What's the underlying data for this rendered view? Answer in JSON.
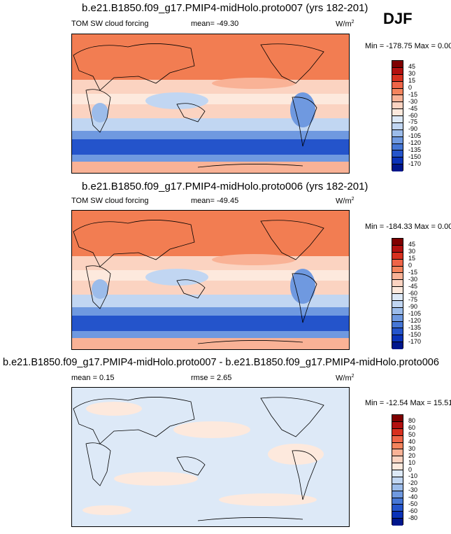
{
  "season": "DJF",
  "panels": [
    {
      "title": "b.e21.B1850.f09_g17.PMIP4-midHolo.proto007 (yrs 182-201)",
      "left_label": "TOM SW cloud forcing",
      "center_label": "mean= -49.30",
      "units_base": "W/m",
      "units_exp": "2",
      "minmax": "Min = -178.75 Max =   0.00",
      "colorbar_labels": [
        "45",
        "30",
        "15",
        "0",
        "-15",
        "-30",
        "-45",
        "-60",
        "-75",
        "-90",
        "-105",
        "-120",
        "-135",
        "-150",
        "-170"
      ],
      "colorbar_colors": [
        "#7f0000",
        "#b2100f",
        "#d7301f",
        "#ef6548",
        "#f4845d",
        "#f9b296",
        "#fbd3c1",
        "#fde9dd",
        "#dde9f7",
        "#c1d6f2",
        "#9cbcea",
        "#6f99e0",
        "#4677d6",
        "#2454cb",
        "#0a32b8",
        "#00168c"
      ],
      "map_style": "full"
    },
    {
      "title": "b.e21.B1850.f09_g17.PMIP4-midHolo.proto006 (yrs 182-201)",
      "left_label": "TOM SW cloud forcing",
      "center_label": "mean= -49.45",
      "units_base": "W/m",
      "units_exp": "2",
      "minmax": "Min = -184.33 Max =   0.00",
      "colorbar_labels": [
        "45",
        "30",
        "15",
        "0",
        "-15",
        "-30",
        "-45",
        "-60",
        "-75",
        "-90",
        "-105",
        "-120",
        "-135",
        "-150",
        "-170"
      ],
      "colorbar_colors": [
        "#7f0000",
        "#b2100f",
        "#d7301f",
        "#ef6548",
        "#f4845d",
        "#f9b296",
        "#fbd3c1",
        "#fde9dd",
        "#dde9f7",
        "#c1d6f2",
        "#9cbcea",
        "#6f99e0",
        "#4677d6",
        "#2454cb",
        "#0a32b8",
        "#00168c"
      ],
      "map_style": "full"
    },
    {
      "title": "b.e21.B1850.f09_g17.PMIP4-midHolo.proto007 - b.e21.B1850.f09_g17.PMIP4-midHolo.proto006",
      "left_label": "mean =   0.15",
      "center_label": "rmse =   2.65",
      "units_base": "W/m",
      "units_exp": "2",
      "minmax": "Min = -12.54 Max =  15.51",
      "colorbar_labels": [
        "80",
        "60",
        "50",
        "40",
        "30",
        "20",
        "10",
        "0",
        "-10",
        "-20",
        "-30",
        "-40",
        "-50",
        "-60",
        "-80"
      ],
      "colorbar_colors": [
        "#7f0000",
        "#b2100f",
        "#d7301f",
        "#ef6548",
        "#f4845d",
        "#f9b296",
        "#fbd3c1",
        "#fde9dd",
        "#dde9f7",
        "#c1d6f2",
        "#9cbcea",
        "#6f99e0",
        "#4677d6",
        "#2454cb",
        "#0a32b8",
        "#00168c"
      ],
      "map_style": "diff"
    }
  ]
}
